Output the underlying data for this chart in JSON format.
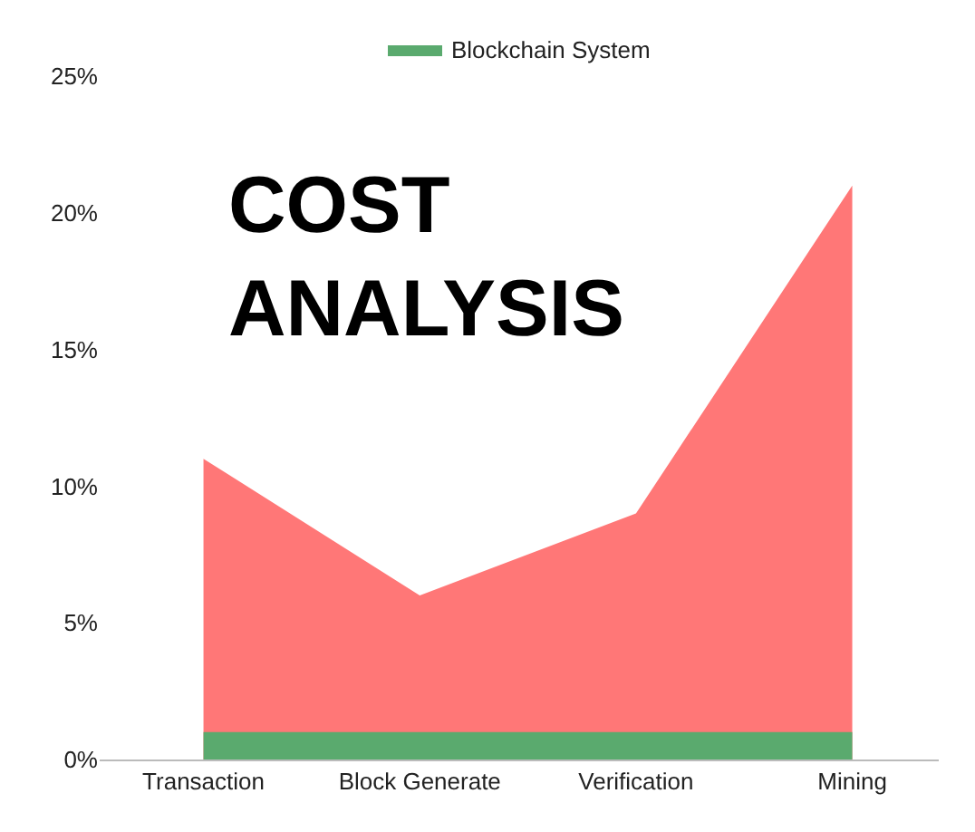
{
  "chart_data": {
    "type": "area",
    "title": "COST\nANALYSIS",
    "categories": [
      "Transaction",
      "Block Generate",
      "Verification",
      "Mining"
    ],
    "series": [
      {
        "color": "#ff7777",
        "values": [
          11,
          6,
          9,
          21
        ]
      },
      {
        "name": "Blockchain System",
        "color": "#5aaa6e",
        "values": [
          1,
          1,
          1,
          1
        ]
      }
    ],
    "ylim": [
      0,
      25
    ],
    "yticks": [
      {
        "value": 0,
        "label": "0%"
      },
      {
        "value": 5,
        "label": "5%"
      },
      {
        "value": 10,
        "label": "10%"
      },
      {
        "value": 15,
        "label": "15%"
      },
      {
        "value": 20,
        "label": "20%"
      },
      {
        "value": 25,
        "label": "25%"
      }
    ],
    "legend": "top"
  }
}
